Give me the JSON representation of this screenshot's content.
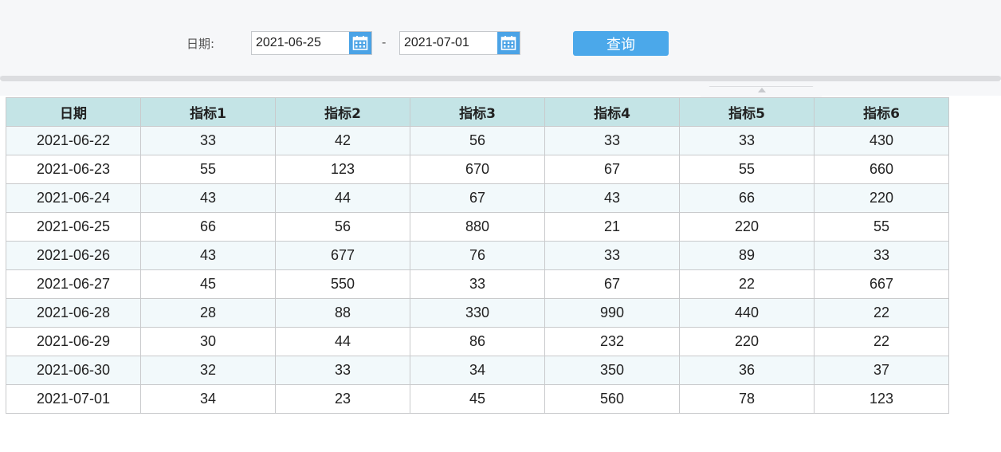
{
  "filter": {
    "date_label": "日期:",
    "start_date": "2021-06-25",
    "separator": "-",
    "end_date": "2021-07-01",
    "query_label": "查询",
    "calendar_icon": "calendar-icon"
  },
  "colors": {
    "accent": "#4ba8ea",
    "header_bg": "#c4e4e6",
    "stripe_bg": "#f2f9fb"
  },
  "table": {
    "headers": [
      "日期",
      "指标1",
      "指标2",
      "指标3",
      "指标4",
      "指标5",
      "指标6"
    ],
    "rows": [
      [
        "2021-06-22",
        "33",
        "42",
        "56",
        "33",
        "33",
        "430"
      ],
      [
        "2021-06-23",
        "55",
        "123",
        "670",
        "67",
        "55",
        "660"
      ],
      [
        "2021-06-24",
        "43",
        "44",
        "67",
        "43",
        "66",
        "220"
      ],
      [
        "2021-06-25",
        "66",
        "56",
        "880",
        "21",
        "220",
        "55"
      ],
      [
        "2021-06-26",
        "43",
        "677",
        "76",
        "33",
        "89",
        "33"
      ],
      [
        "2021-06-27",
        "45",
        "550",
        "33",
        "67",
        "22",
        "667"
      ],
      [
        "2021-06-28",
        "28",
        "88",
        "330",
        "990",
        "440",
        "22"
      ],
      [
        "2021-06-29",
        "30",
        "44",
        "86",
        "232",
        "220",
        "22"
      ],
      [
        "2021-06-30",
        "32",
        "33",
        "34",
        "350",
        "36",
        "37"
      ],
      [
        "2021-07-01",
        "34",
        "23",
        "45",
        "560",
        "78",
        "123"
      ]
    ]
  }
}
